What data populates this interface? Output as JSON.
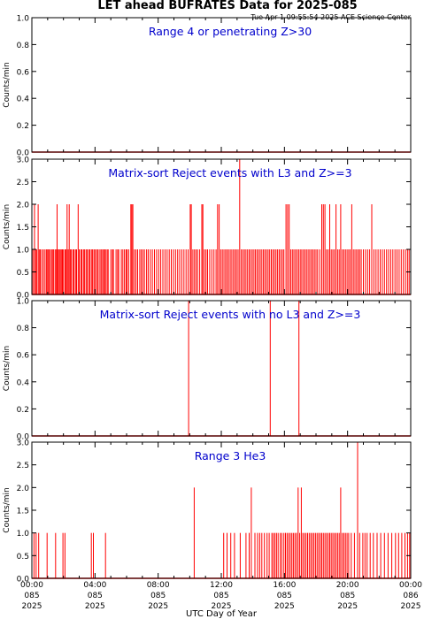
{
  "title": "LET ahead BUFRATES Data for 2025-085",
  "timestamp": "Tue Apr  1 09:55:54 2025 ACE Science Center",
  "xlabel": "UTC Day of Year",
  "chart_data": [
    {
      "type": "line",
      "title": "Range 4 or  penetrating Z>30",
      "ylabel": "Counts/min",
      "ylim": [
        0,
        1.0
      ],
      "yticks": [
        "0.0",
        "0.2",
        "0.4",
        "0.6",
        "0.8",
        "1.0"
      ],
      "xlim": [
        0,
        1440
      ],
      "color": "#ff0000",
      "spikes": []
    },
    {
      "type": "line",
      "title": "Matrix-sort Reject events with L3 and Z>=3",
      "ylabel": "Counts/min",
      "ylim": [
        0,
        3.0
      ],
      "yticks": [
        "0.0",
        "0.5",
        "1.0",
        "1.5",
        "2.0",
        "2.5",
        "3.0"
      ],
      "xlim": [
        0,
        1440
      ],
      "color": "#ff0000",
      "spikes": [
        [
          4,
          1
        ],
        [
          10,
          2
        ],
        [
          14,
          1
        ],
        [
          18,
          1
        ],
        [
          24,
          2
        ],
        [
          28,
          1
        ],
        [
          32,
          1
        ],
        [
          38,
          1
        ],
        [
          44,
          1
        ],
        [
          50,
          1
        ],
        [
          56,
          1
        ],
        [
          60,
          1
        ],
        [
          64,
          1
        ],
        [
          68,
          1
        ],
        [
          74,
          1
        ],
        [
          78,
          1
        ],
        [
          82,
          1
        ],
        [
          88,
          1
        ],
        [
          92,
          1
        ],
        [
          96,
          2
        ],
        [
          100,
          1
        ],
        [
          104,
          1
        ],
        [
          108,
          1
        ],
        [
          112,
          1
        ],
        [
          116,
          1
        ],
        [
          120,
          1
        ],
        [
          126,
          1
        ],
        [
          130,
          1
        ],
        [
          134,
          2
        ],
        [
          138,
          1
        ],
        [
          142,
          2
        ],
        [
          146,
          1
        ],
        [
          150,
          1
        ],
        [
          156,
          1
        ],
        [
          160,
          1
        ],
        [
          166,
          1
        ],
        [
          170,
          1
        ],
        [
          176,
          2
        ],
        [
          180,
          1
        ],
        [
          186,
          1
        ],
        [
          190,
          1
        ],
        [
          196,
          1
        ],
        [
          200,
          1
        ],
        [
          206,
          1
        ],
        [
          210,
          1
        ],
        [
          216,
          1
        ],
        [
          220,
          1
        ],
        [
          226,
          1
        ],
        [
          230,
          1
        ],
        [
          236,
          1
        ],
        [
          240,
          1
        ],
        [
          246,
          1
        ],
        [
          250,
          1
        ],
        [
          256,
          1
        ],
        [
          262,
          1
        ],
        [
          266,
          1
        ],
        [
          272,
          1
        ],
        [
          276,
          1
        ],
        [
          280,
          1
        ],
        [
          286,
          1
        ],
        [
          290,
          1
        ],
        [
          300,
          1
        ],
        [
          306,
          1
        ],
        [
          310,
          1
        ],
        [
          320,
          1
        ],
        [
          326,
          1
        ],
        [
          330,
          1
        ],
        [
          340,
          1
        ],
        [
          346,
          1
        ],
        [
          352,
          1
        ],
        [
          358,
          1
        ],
        [
          362,
          1
        ],
        [
          368,
          1
        ],
        [
          376,
          2
        ],
        [
          380,
          2
        ],
        [
          384,
          2
        ],
        [
          390,
          1
        ],
        [
          396,
          1
        ],
        [
          402,
          1
        ],
        [
          410,
          1
        ],
        [
          416,
          1
        ],
        [
          422,
          1
        ],
        [
          428,
          1
        ],
        [
          436,
          1
        ],
        [
          442,
          1
        ],
        [
          450,
          1
        ],
        [
          458,
          1
        ],
        [
          466,
          1
        ],
        [
          474,
          1
        ],
        [
          482,
          1
        ],
        [
          490,
          1
        ],
        [
          498,
          1
        ],
        [
          506,
          1
        ],
        [
          514,
          1
        ],
        [
          522,
          1
        ],
        [
          530,
          1
        ],
        [
          538,
          1
        ],
        [
          546,
          1
        ],
        [
          554,
          1
        ],
        [
          562,
          1
        ],
        [
          570,
          1
        ],
        [
          578,
          1
        ],
        [
          586,
          1
        ],
        [
          594,
          1
        ],
        [
          602,
          2
        ],
        [
          606,
          2
        ],
        [
          612,
          1
        ],
        [
          618,
          1
        ],
        [
          624,
          1
        ],
        [
          630,
          1
        ],
        [
          638,
          1
        ],
        [
          646,
          2
        ],
        [
          650,
          2
        ],
        [
          656,
          1
        ],
        [
          662,
          1
        ],
        [
          668,
          1
        ],
        [
          676,
          1
        ],
        [
          684,
          1
        ],
        [
          692,
          1
        ],
        [
          700,
          1
        ],
        [
          706,
          2
        ],
        [
          712,
          2
        ],
        [
          718,
          1
        ],
        [
          724,
          1
        ],
        [
          730,
          1
        ],
        [
          736,
          1
        ],
        [
          742,
          1
        ],
        [
          748,
          1
        ],
        [
          754,
          1
        ],
        [
          760,
          1
        ],
        [
          766,
          1
        ],
        [
          772,
          1
        ],
        [
          778,
          1
        ],
        [
          784,
          1
        ],
        [
          790,
          3
        ],
        [
          796,
          1
        ],
        [
          802,
          1
        ],
        [
          808,
          1
        ],
        [
          814,
          1
        ],
        [
          820,
          1
        ],
        [
          826,
          1
        ],
        [
          832,
          1
        ],
        [
          838,
          1
        ],
        [
          844,
          1
        ],
        [
          850,
          1
        ],
        [
          856,
          1
        ],
        [
          862,
          1
        ],
        [
          868,
          1
        ],
        [
          874,
          1
        ],
        [
          880,
          1
        ],
        [
          886,
          1
        ],
        [
          892,
          1
        ],
        [
          898,
          1
        ],
        [
          904,
          1
        ],
        [
          910,
          1
        ],
        [
          916,
          1
        ],
        [
          922,
          1
        ],
        [
          928,
          1
        ],
        [
          934,
          1
        ],
        [
          940,
          1
        ],
        [
          946,
          1
        ],
        [
          952,
          1
        ],
        [
          958,
          1
        ],
        [
          966,
          2
        ],
        [
          972,
          2
        ],
        [
          978,
          2
        ],
        [
          984,
          1
        ],
        [
          990,
          1
        ],
        [
          996,
          1
        ],
        [
          1002,
          1
        ],
        [
          1008,
          1
        ],
        [
          1014,
          1
        ],
        [
          1020,
          1
        ],
        [
          1026,
          1
        ],
        [
          1032,
          1
        ],
        [
          1038,
          1
        ],
        [
          1044,
          1
        ],
        [
          1050,
          1
        ],
        [
          1056,
          1
        ],
        [
          1062,
          1
        ],
        [
          1068,
          1
        ],
        [
          1074,
          1
        ],
        [
          1080,
          1
        ],
        [
          1086,
          1
        ],
        [
          1094,
          1
        ],
        [
          1102,
          2
        ],
        [
          1108,
          2
        ],
        [
          1114,
          2
        ],
        [
          1120,
          1
        ],
        [
          1126,
          1
        ],
        [
          1132,
          2
        ],
        [
          1138,
          1
        ],
        [
          1144,
          1
        ],
        [
          1150,
          1
        ],
        [
          1156,
          2
        ],
        [
          1162,
          1
        ],
        [
          1168,
          1
        ],
        [
          1174,
          2
        ],
        [
          1180,
          1
        ],
        [
          1186,
          1
        ],
        [
          1192,
          1
        ],
        [
          1198,
          1
        ],
        [
          1204,
          1
        ],
        [
          1210,
          1
        ],
        [
          1216,
          2
        ],
        [
          1222,
          1
        ],
        [
          1228,
          1
        ],
        [
          1234,
          1
        ],
        [
          1240,
          1
        ],
        [
          1246,
          1
        ],
        [
          1252,
          1
        ],
        [
          1260,
          1
        ],
        [
          1268,
          1
        ],
        [
          1276,
          1
        ],
        [
          1284,
          1
        ],
        [
          1292,
          2
        ],
        [
          1300,
          1
        ],
        [
          1308,
          1
        ],
        [
          1316,
          1
        ],
        [
          1324,
          1
        ],
        [
          1332,
          1
        ],
        [
          1340,
          1
        ],
        [
          1348,
          1
        ],
        [
          1356,
          1
        ],
        [
          1364,
          1
        ],
        [
          1372,
          1
        ],
        [
          1380,
          1
        ],
        [
          1388,
          1
        ],
        [
          1396,
          1
        ],
        [
          1404,
          1
        ],
        [
          1412,
          1
        ],
        [
          1420,
          1
        ],
        [
          1428,
          1
        ],
        [
          1434,
          1
        ]
      ]
    },
    {
      "type": "line",
      "title": "Matrix-sort Reject events with no L3 and Z>=3",
      "ylabel": "Counts/min",
      "ylim": [
        0,
        1.0
      ],
      "yticks": [
        "0.0",
        "0.2",
        "0.4",
        "0.6",
        "0.8",
        "1.0"
      ],
      "xlim": [
        0,
        1440
      ],
      "color": "#ff0000",
      "spikes": [
        [
          596,
          1
        ],
        [
          906,
          1
        ],
        [
          1015,
          1
        ]
      ]
    },
    {
      "type": "line",
      "title": "Range 3 He3",
      "ylabel": "Counts/min",
      "ylim": [
        0,
        3.0
      ],
      "yticks": [
        "0.0",
        "0.5",
        "1.0",
        "1.5",
        "2.0",
        "2.5",
        "3.0"
      ],
      "xlim": [
        0,
        1440
      ],
      "color": "#ff0000",
      "spikes": [
        [
          8,
          1
        ],
        [
          16,
          1
        ],
        [
          26,
          1
        ],
        [
          58,
          1
        ],
        [
          90,
          1
        ],
        [
          118,
          1
        ],
        [
          126,
          1
        ],
        [
          226,
          1
        ],
        [
          234,
          1
        ],
        [
          280,
          1
        ],
        [
          617,
          2
        ],
        [
          729,
          1
        ],
        [
          742,
          1
        ],
        [
          756,
          1
        ],
        [
          770,
          1
        ],
        [
          792,
          1
        ],
        [
          814,
          1
        ],
        [
          826,
          1
        ],
        [
          834,
          2
        ],
        [
          848,
          1
        ],
        [
          858,
          1
        ],
        [
          866,
          1
        ],
        [
          874,
          1
        ],
        [
          884,
          1
        ],
        [
          894,
          1
        ],
        [
          902,
          1
        ],
        [
          912,
          1
        ],
        [
          918,
          1
        ],
        [
          924,
          1
        ],
        [
          930,
          1
        ],
        [
          936,
          1
        ],
        [
          944,
          1
        ],
        [
          950,
          1
        ],
        [
          958,
          1
        ],
        [
          964,
          1
        ],
        [
          970,
          1
        ],
        [
          976,
          1
        ],
        [
          982,
          1
        ],
        [
          988,
          1
        ],
        [
          994,
          1
        ],
        [
          1000,
          1
        ],
        [
          1006,
          1
        ],
        [
          1012,
          2
        ],
        [
          1018,
          1
        ],
        [
          1024,
          2
        ],
        [
          1030,
          1
        ],
        [
          1036,
          1
        ],
        [
          1042,
          1
        ],
        [
          1048,
          1
        ],
        [
          1054,
          1
        ],
        [
          1060,
          1
        ],
        [
          1066,
          1
        ],
        [
          1072,
          1
        ],
        [
          1078,
          1
        ],
        [
          1084,
          1
        ],
        [
          1090,
          1
        ],
        [
          1096,
          1
        ],
        [
          1102,
          1
        ],
        [
          1108,
          1
        ],
        [
          1114,
          1
        ],
        [
          1120,
          1
        ],
        [
          1126,
          1
        ],
        [
          1132,
          1
        ],
        [
          1138,
          1
        ],
        [
          1144,
          1
        ],
        [
          1150,
          1
        ],
        [
          1156,
          1
        ],
        [
          1162,
          1
        ],
        [
          1168,
          1
        ],
        [
          1174,
          2
        ],
        [
          1180,
          1
        ],
        [
          1186,
          1
        ],
        [
          1192,
          1
        ],
        [
          1198,
          1
        ],
        [
          1204,
          1
        ],
        [
          1214,
          1
        ],
        [
          1226,
          1
        ],
        [
          1238,
          3
        ],
        [
          1246,
          1
        ],
        [
          1258,
          1
        ],
        [
          1266,
          1
        ],
        [
          1274,
          1
        ],
        [
          1286,
          1
        ],
        [
          1298,
          1
        ],
        [
          1312,
          1
        ],
        [
          1326,
          1
        ],
        [
          1340,
          1
        ],
        [
          1354,
          1
        ],
        [
          1368,
          1
        ],
        [
          1382,
          1
        ],
        [
          1394,
          1
        ],
        [
          1406,
          1
        ],
        [
          1418,
          1
        ],
        [
          1428,
          1
        ],
        [
          1436,
          1
        ]
      ]
    }
  ],
  "xticks": [
    {
      "time": "00:00",
      "doy": "085",
      "year": "2025"
    },
    {
      "time": "04:00",
      "doy": "085",
      "year": "2025"
    },
    {
      "time": "08:00",
      "doy": "085",
      "year": "2025"
    },
    {
      "time": "12:00",
      "doy": "085",
      "year": "2025"
    },
    {
      "time": "16:00",
      "doy": "085",
      "year": "2025"
    },
    {
      "time": "20:00",
      "doy": "085",
      "year": "2025"
    },
    {
      "time": "00:00",
      "doy": "086",
      "year": "2025"
    }
  ],
  "colors": {
    "line": "#ff0000",
    "title": "#0000cc",
    "axes": "#000000"
  }
}
